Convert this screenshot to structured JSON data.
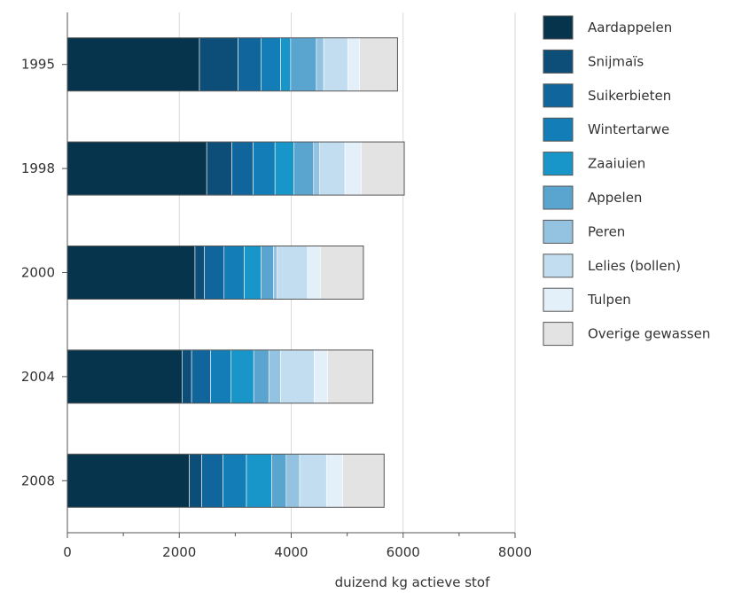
{
  "chart_data": {
    "type": "bar",
    "orientation": "horizontal",
    "stacked": true,
    "title": "",
    "xlabel": "duizend kg actieve stof",
    "ylabel": "",
    "xlim": [
      0,
      8000
    ],
    "xticks": [
      0,
      2000,
      4000,
      6000,
      8000
    ],
    "xtick_labels": [
      "0",
      "2000",
      "4000",
      "6000",
      "8000"
    ],
    "grid": "vertical",
    "legend_position": "right",
    "categories": [
      "1995",
      "1998",
      "2000",
      "2004",
      "2008"
    ],
    "series": [
      {
        "name": "Aardappelen",
        "color": "#06344c",
        "values": [
          2360,
          2490,
          2280,
          2050,
          2180
        ]
      },
      {
        "name": "Snijmaïs",
        "color": "#0d4e78",
        "values": [
          690,
          450,
          170,
          170,
          220
        ]
      },
      {
        "name": "Suikerbieten",
        "color": "#0f659c",
        "values": [
          410,
          380,
          350,
          340,
          380
        ]
      },
      {
        "name": "Wintertarwe",
        "color": "#127db6",
        "values": [
          350,
          390,
          360,
          360,
          420
        ]
      },
      {
        "name": "Zaaiuien",
        "color": "#1895c9",
        "values": [
          180,
          340,
          300,
          410,
          450
        ]
      },
      {
        "name": "Appelen",
        "color": "#5aa5cf",
        "values": [
          460,
          350,
          220,
          270,
          260
        ]
      },
      {
        "name": "Peren",
        "color": "#94c3e2",
        "values": [
          130,
          110,
          70,
          210,
          240
        ]
      },
      {
        "name": "Lelies (bollen)",
        "color": "#c2ddf0",
        "values": [
          430,
          450,
          540,
          600,
          480
        ]
      },
      {
        "name": "Tulpen",
        "color": "#e3f0f9",
        "values": [
          210,
          290,
          230,
          240,
          290
        ]
      },
      {
        "name": "Overige gewassen",
        "color": "#e3e3e3",
        "values": [
          680,
          770,
          770,
          810,
          740
        ]
      }
    ]
  }
}
